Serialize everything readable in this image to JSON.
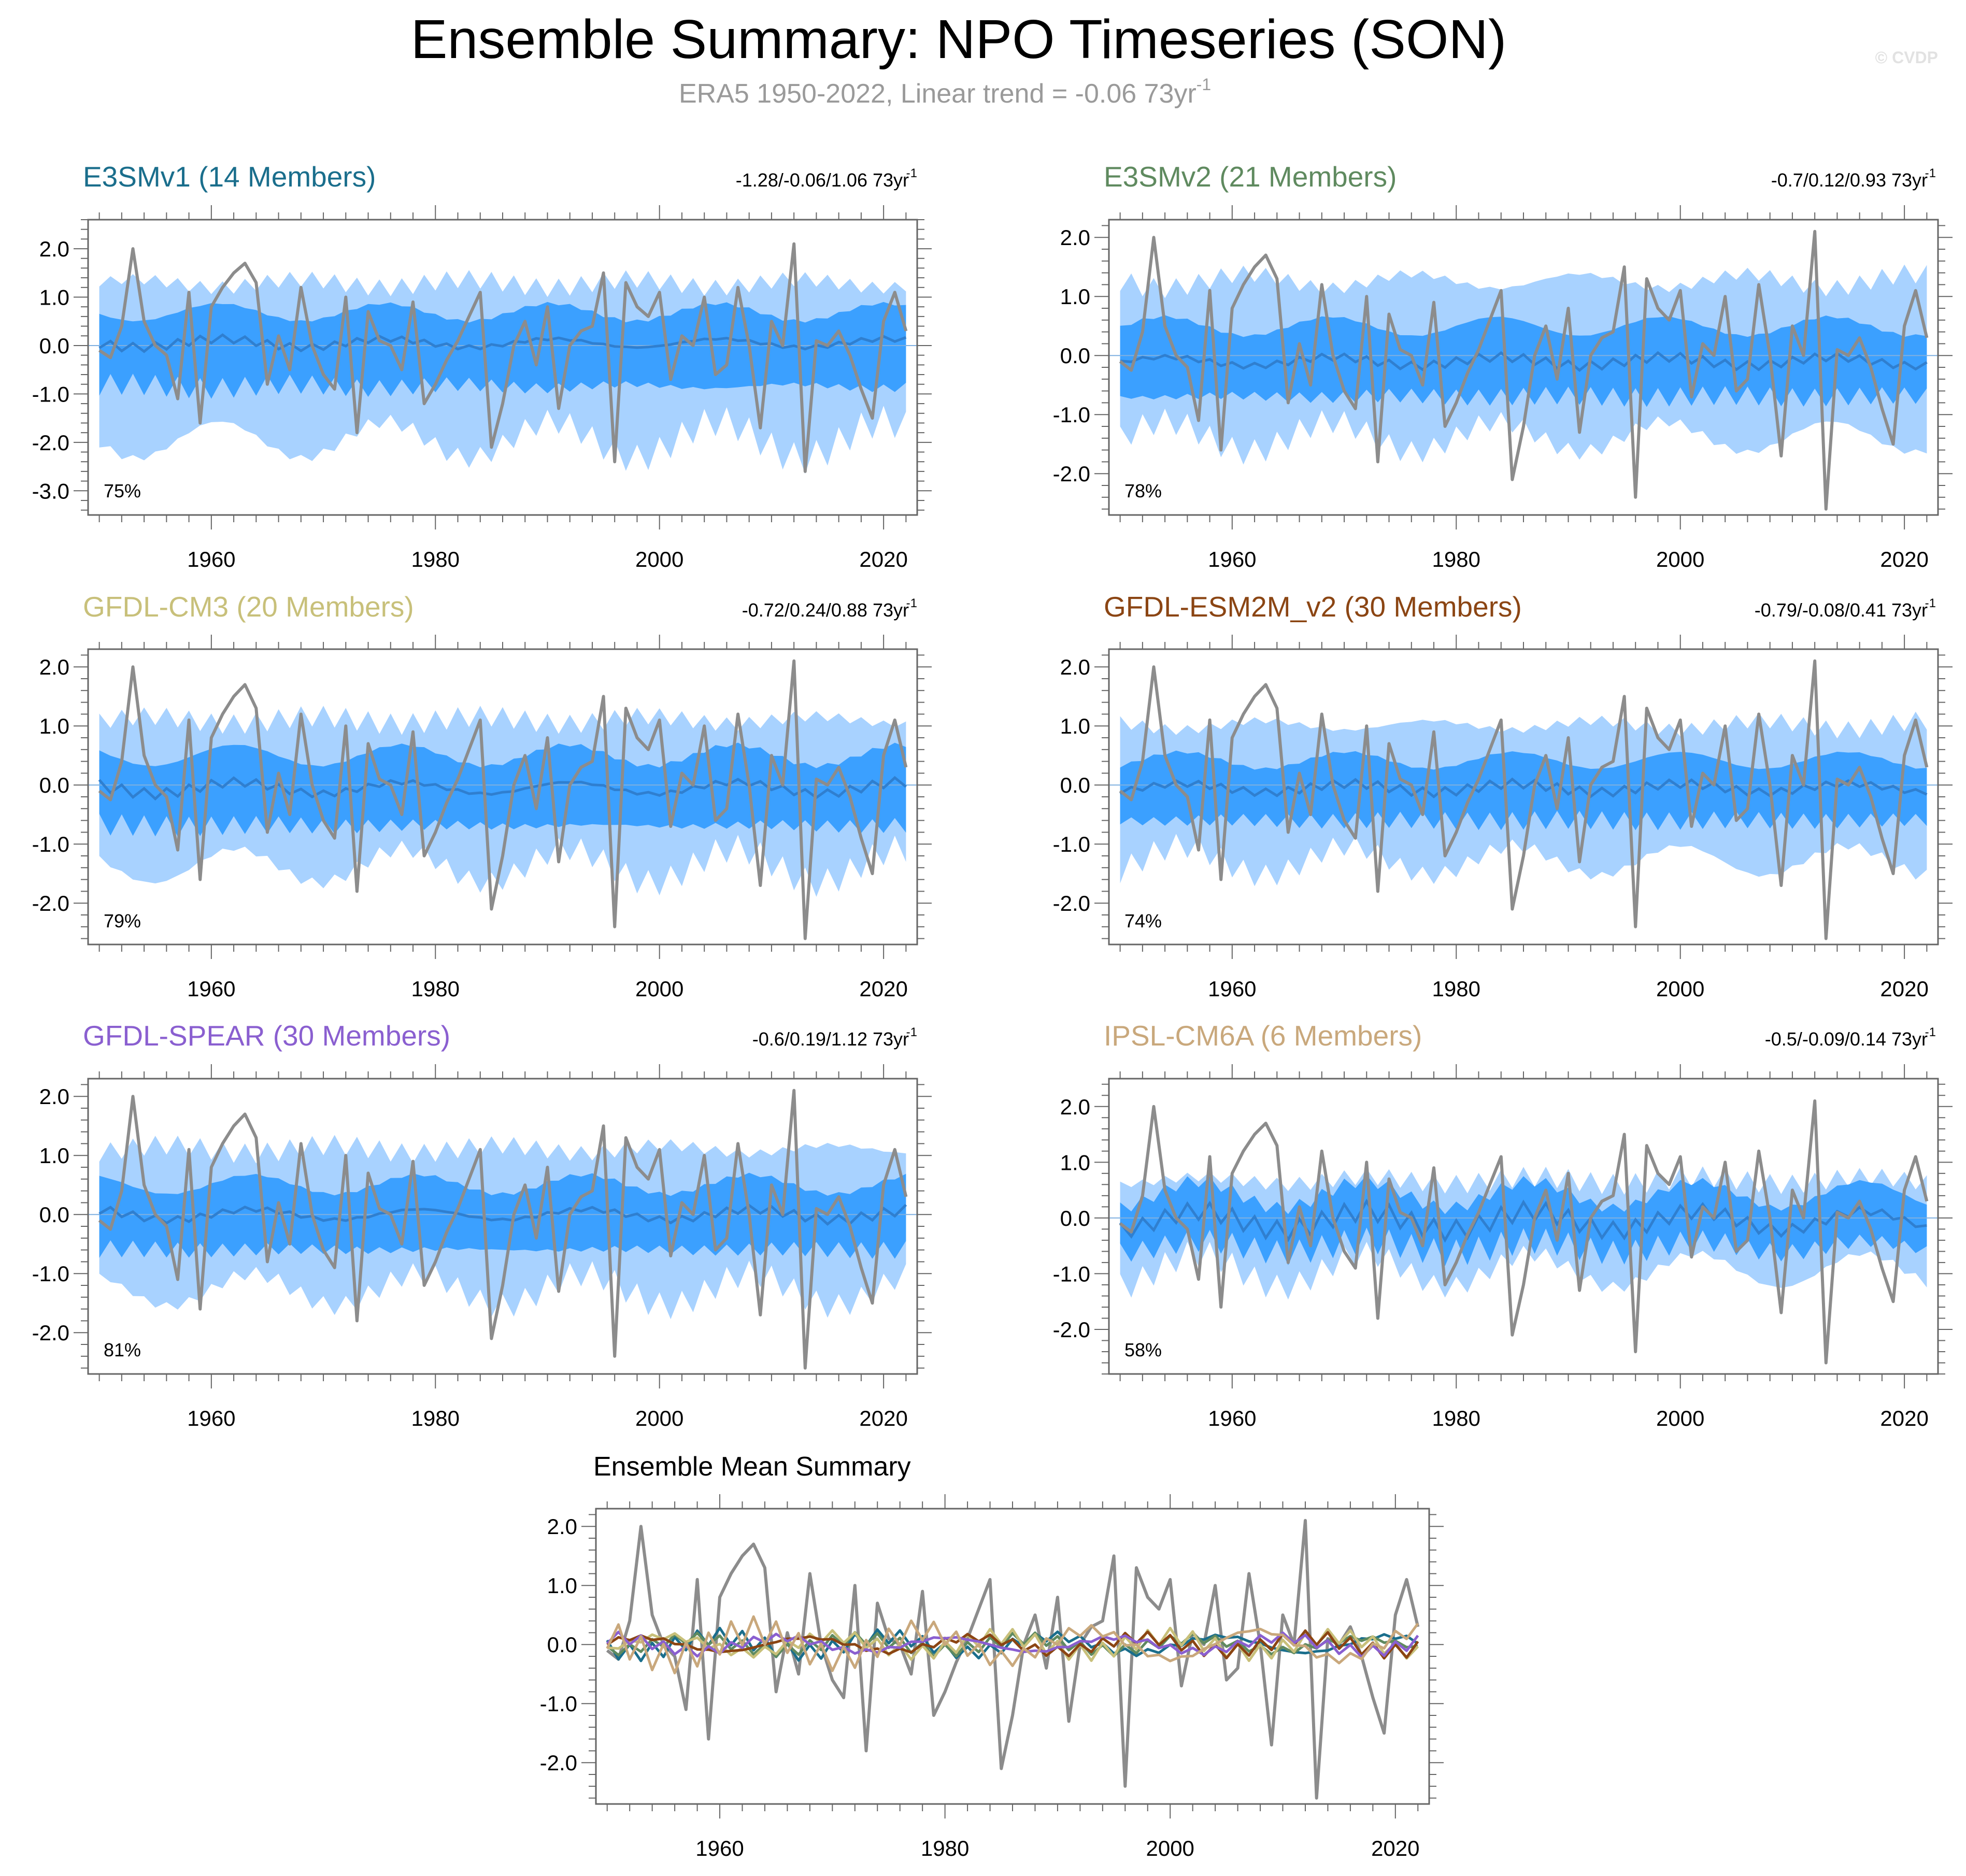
{
  "figure": {
    "title": "Ensemble Summary: NPO Timeseries (SON)",
    "subtitle_main": "ERA5 1950-2022, Linear trend = -0.06 73yr",
    "subtitle_sup": "-1",
    "watermark": "© CVDP"
  },
  "chart_data": [
    {
      "type": "area",
      "id": "e3smv1",
      "title": "E3SMv1 (14 Members)",
      "title_color": "#1a6e8c",
      "trend_stats": "-1.28/-0.06/1.06 73yr",
      "trend_sup": "-1",
      "percent_label": "75%",
      "ylim": [
        -3.5,
        2.6
      ],
      "yticks": [
        "2.0",
        "1.0",
        "0.0",
        "-1.0",
        "-2.0",
        "-3.0"
      ],
      "ytick_values": [
        2,
        1,
        0,
        -1,
        -2,
        -3
      ],
      "xlim": [
        1949,
        2023
      ],
      "xticks": [
        "1960",
        "1980",
        "2000",
        "2020"
      ],
      "xtick_values": [
        1960,
        1980,
        2000,
        2020
      ],
      "series": [
        {
          "name": "10-90% range",
          "color": "#a8d2ff",
          "ymin": -2.3,
          "ymax": 1.5
        },
        {
          "name": "25-75% range",
          "color": "#3ba0ff",
          "ymin": -1.0,
          "ymax": 0.8
        },
        {
          "name": "Ensemble mean",
          "color": "#2f7fd0",
          "mean_center": 0.05,
          "mean_amp": 0.18
        },
        {
          "name": "ERA5",
          "color": "#8c8c8c"
        }
      ]
    },
    {
      "type": "area",
      "id": "e3smv2",
      "title": "E3SMv2 (21 Members)",
      "title_color": "#5f8a5f",
      "trend_stats": "-0.7/0.12/0.93 73yr",
      "trend_sup": "-1",
      "percent_label": "78%",
      "ylim": [
        -2.7,
        2.3
      ],
      "yticks": [
        "2.0",
        "1.0",
        "0.0",
        "-1.0",
        "-2.0"
      ],
      "ytick_values": [
        2,
        1,
        0,
        -1,
        -2
      ],
      "xlim": [
        1949,
        2023
      ],
      "xticks": [
        "1960",
        "1980",
        "2000",
        "2020"
      ],
      "xtick_values": [
        1960,
        1980,
        2000,
        2020
      ],
      "series": [
        {
          "name": "10-90% range",
          "color": "#a8d2ff",
          "ymin": -1.6,
          "ymax": 1.5
        },
        {
          "name": "25-75% range",
          "color": "#3ba0ff",
          "ymin": -0.8,
          "ymax": 0.6
        },
        {
          "name": "Ensemble mean",
          "color": "#2f7fd0",
          "mean_center": -0.1,
          "mean_amp": 0.15
        },
        {
          "name": "ERA5",
          "color": "#8c8c8c"
        }
      ]
    },
    {
      "type": "area",
      "id": "gfdl-cm3",
      "title": "GFDL-CM3 (20 Members)",
      "title_color": "#c8c07a",
      "trend_stats": "-0.72/0.24/0.88 73yr",
      "trend_sup": "-1",
      "percent_label": "79%",
      "ylim": [
        -2.7,
        2.3
      ],
      "yticks": [
        "2.0",
        "1.0",
        "0.0",
        "-1.0",
        "-2.0"
      ],
      "ytick_values": [
        2,
        1,
        0,
        -1,
        -2
      ],
      "xlim": [
        1949,
        2023
      ],
      "xticks": [
        "1960",
        "1980",
        "2000",
        "2020"
      ],
      "xtick_values": [
        1960,
        1980,
        2000,
        2020
      ],
      "series": [
        {
          "name": "10-90% range",
          "color": "#a8d2ff",
          "ymin": -1.6,
          "ymax": 1.3
        },
        {
          "name": "25-75% range",
          "color": "#3ba0ff",
          "ymin": -0.8,
          "ymax": 0.6
        },
        {
          "name": "Ensemble mean",
          "color": "#2f7fd0",
          "mean_center": -0.05,
          "mean_amp": 0.2
        },
        {
          "name": "ERA5",
          "color": "#8c8c8c"
        }
      ]
    },
    {
      "type": "area",
      "id": "gfdl-esm2m",
      "title": "GFDL-ESM2M_v2 (30 Members)",
      "title_color": "#8b4513",
      "trend_stats": "-0.79/-0.08/0.41 73yr",
      "trend_sup": "-1",
      "percent_label": "74%",
      "ylim": [
        -2.7,
        2.3
      ],
      "yticks": [
        "2.0",
        "1.0",
        "0.0",
        "-1.0",
        "-2.0"
      ],
      "ytick_values": [
        2,
        1,
        0,
        -1,
        -2
      ],
      "xlim": [
        1949,
        2023
      ],
      "xticks": [
        "1960",
        "1980",
        "2000",
        "2020"
      ],
      "xtick_values": [
        1960,
        1980,
        2000,
        2020
      ],
      "series": [
        {
          "name": "10-90% range",
          "color": "#a8d2ff",
          "ymin": -1.5,
          "ymax": 1.2
        },
        {
          "name": "25-75% range",
          "color": "#3ba0ff",
          "ymin": -0.7,
          "ymax": 0.5
        },
        {
          "name": "Ensemble mean",
          "color": "#2f7fd0",
          "mean_center": -0.05,
          "mean_amp": 0.15
        },
        {
          "name": "ERA5",
          "color": "#8c8c8c"
        }
      ]
    },
    {
      "type": "area",
      "id": "gfdl-spear",
      "title": "GFDL-SPEAR (30 Members)",
      "title_color": "#8a5fd0",
      "trend_stats": "-0.6/0.19/1.12 73yr",
      "trend_sup": "-1",
      "percent_label": "81%",
      "ylim": [
        -2.7,
        2.3
      ],
      "yticks": [
        "2.0",
        "1.0",
        "0.0",
        "-1.0",
        "-2.0"
      ],
      "ytick_values": [
        2,
        1,
        0,
        -1,
        -2
      ],
      "xlim": [
        1949,
        2023
      ],
      "xticks": [
        "1960",
        "1980",
        "2000",
        "2020"
      ],
      "xtick_values": [
        1960,
        1980,
        2000,
        2020
      ],
      "series": [
        {
          "name": "10-90% range",
          "color": "#a8d2ff",
          "ymin": -1.5,
          "ymax": 1.3
        },
        {
          "name": "25-75% range",
          "color": "#3ba0ff",
          "ymin": -0.7,
          "ymax": 0.6
        },
        {
          "name": "Ensemble mean",
          "color": "#2f7fd0",
          "mean_center": 0.0,
          "mean_amp": 0.18
        },
        {
          "name": "ERA5",
          "color": "#8c8c8c"
        }
      ]
    },
    {
      "type": "area",
      "id": "ipsl-cm6a",
      "title": "IPSL-CM6A (6 Members)",
      "title_color": "#c9a87c",
      "trend_stats": "-0.5/-0.09/0.14 73yr",
      "trend_sup": "-1",
      "percent_label": "58%",
      "ylim": [
        -2.8,
        2.5
      ],
      "yticks": [
        "2.0",
        "1.0",
        "0.0",
        "-1.0",
        "-2.0"
      ],
      "ytick_values": [
        2,
        1,
        0,
        -1,
        -2
      ],
      "xlim": [
        1949,
        2023
      ],
      "xticks": [
        "1960",
        "1980",
        "2000",
        "2020"
      ],
      "xtick_values": [
        1960,
        1980,
        2000,
        2020
      ],
      "series": [
        {
          "name": "10-90% range",
          "color": "#a8d2ff",
          "ymin": -1.1,
          "ymax": 0.8
        },
        {
          "name": "25-75% range",
          "color": "#3ba0ff",
          "ymin": -0.6,
          "ymax": 0.5
        },
        {
          "name": "Ensemble mean",
          "color": "#2f7fd0",
          "mean_center": -0.05,
          "mean_amp": 0.35
        },
        {
          "name": "ERA5",
          "color": "#8c8c8c"
        }
      ]
    },
    {
      "type": "line",
      "id": "ensemble-mean",
      "title": "Ensemble Mean Summary",
      "ylim": [
        -2.7,
        2.3
      ],
      "yticks": [
        "2.0",
        "1.0",
        "0.0",
        "-1.0",
        "-2.0"
      ],
      "ytick_values": [
        2,
        1,
        0,
        -1,
        -2
      ],
      "xlim": [
        1949,
        2023
      ],
      "xticks": [
        "1960",
        "1980",
        "2000",
        "2020"
      ],
      "xtick_values": [
        1960,
        1980,
        2000,
        2020
      ],
      "series": [
        {
          "name": "ERA5",
          "color": "#8c8c8c"
        },
        {
          "name": "E3SMv1",
          "color": "#1a6e8c",
          "amp": 0.2
        },
        {
          "name": "E3SMv2",
          "color": "#5f8a5f",
          "amp": 0.15
        },
        {
          "name": "GFDL-CM3",
          "color": "#c8c07a",
          "amp": 0.2
        },
        {
          "name": "GFDL-ESM2M_v2",
          "color": "#8b4513",
          "amp": 0.17
        },
        {
          "name": "GFDL-SPEAR",
          "color": "#8a5fd0",
          "amp": 0.17
        },
        {
          "name": "IPSL-CM6A",
          "color": "#c9a87c",
          "amp": 0.35
        }
      ]
    }
  ],
  "era5_years": [
    1950,
    2022
  ],
  "era5_values": [
    -0.1,
    -0.25,
    0.4,
    2.0,
    0.5,
    0.0,
    -0.2,
    -1.1,
    1.1,
    -1.6,
    0.8,
    1.2,
    1.5,
    1.7,
    1.3,
    -0.8,
    0.2,
    -0.5,
    1.2,
    0.0,
    -0.6,
    -0.9,
    1.0,
    -1.8,
    0.7,
    0.1,
    0.0,
    -0.5,
    0.9,
    -1.2,
    -0.8,
    -0.3,
    0.1,
    0.6,
    1.1,
    -2.1,
    -1.2,
    0.0,
    0.5,
    -0.4,
    0.8,
    -1.3,
    0.0,
    0.3,
    0.4,
    1.5,
    -2.4,
    1.3,
    0.8,
    0.6,
    1.1,
    -0.7,
    0.2,
    0.0,
    1.0,
    -0.6,
    -0.4,
    1.2,
    0.0,
    -1.7,
    0.5,
    0.0,
    2.1,
    -2.6,
    0.1,
    0.0,
    0.3,
    -0.2,
    -0.9,
    -1.5,
    0.5,
    1.1,
    0.3
  ]
}
